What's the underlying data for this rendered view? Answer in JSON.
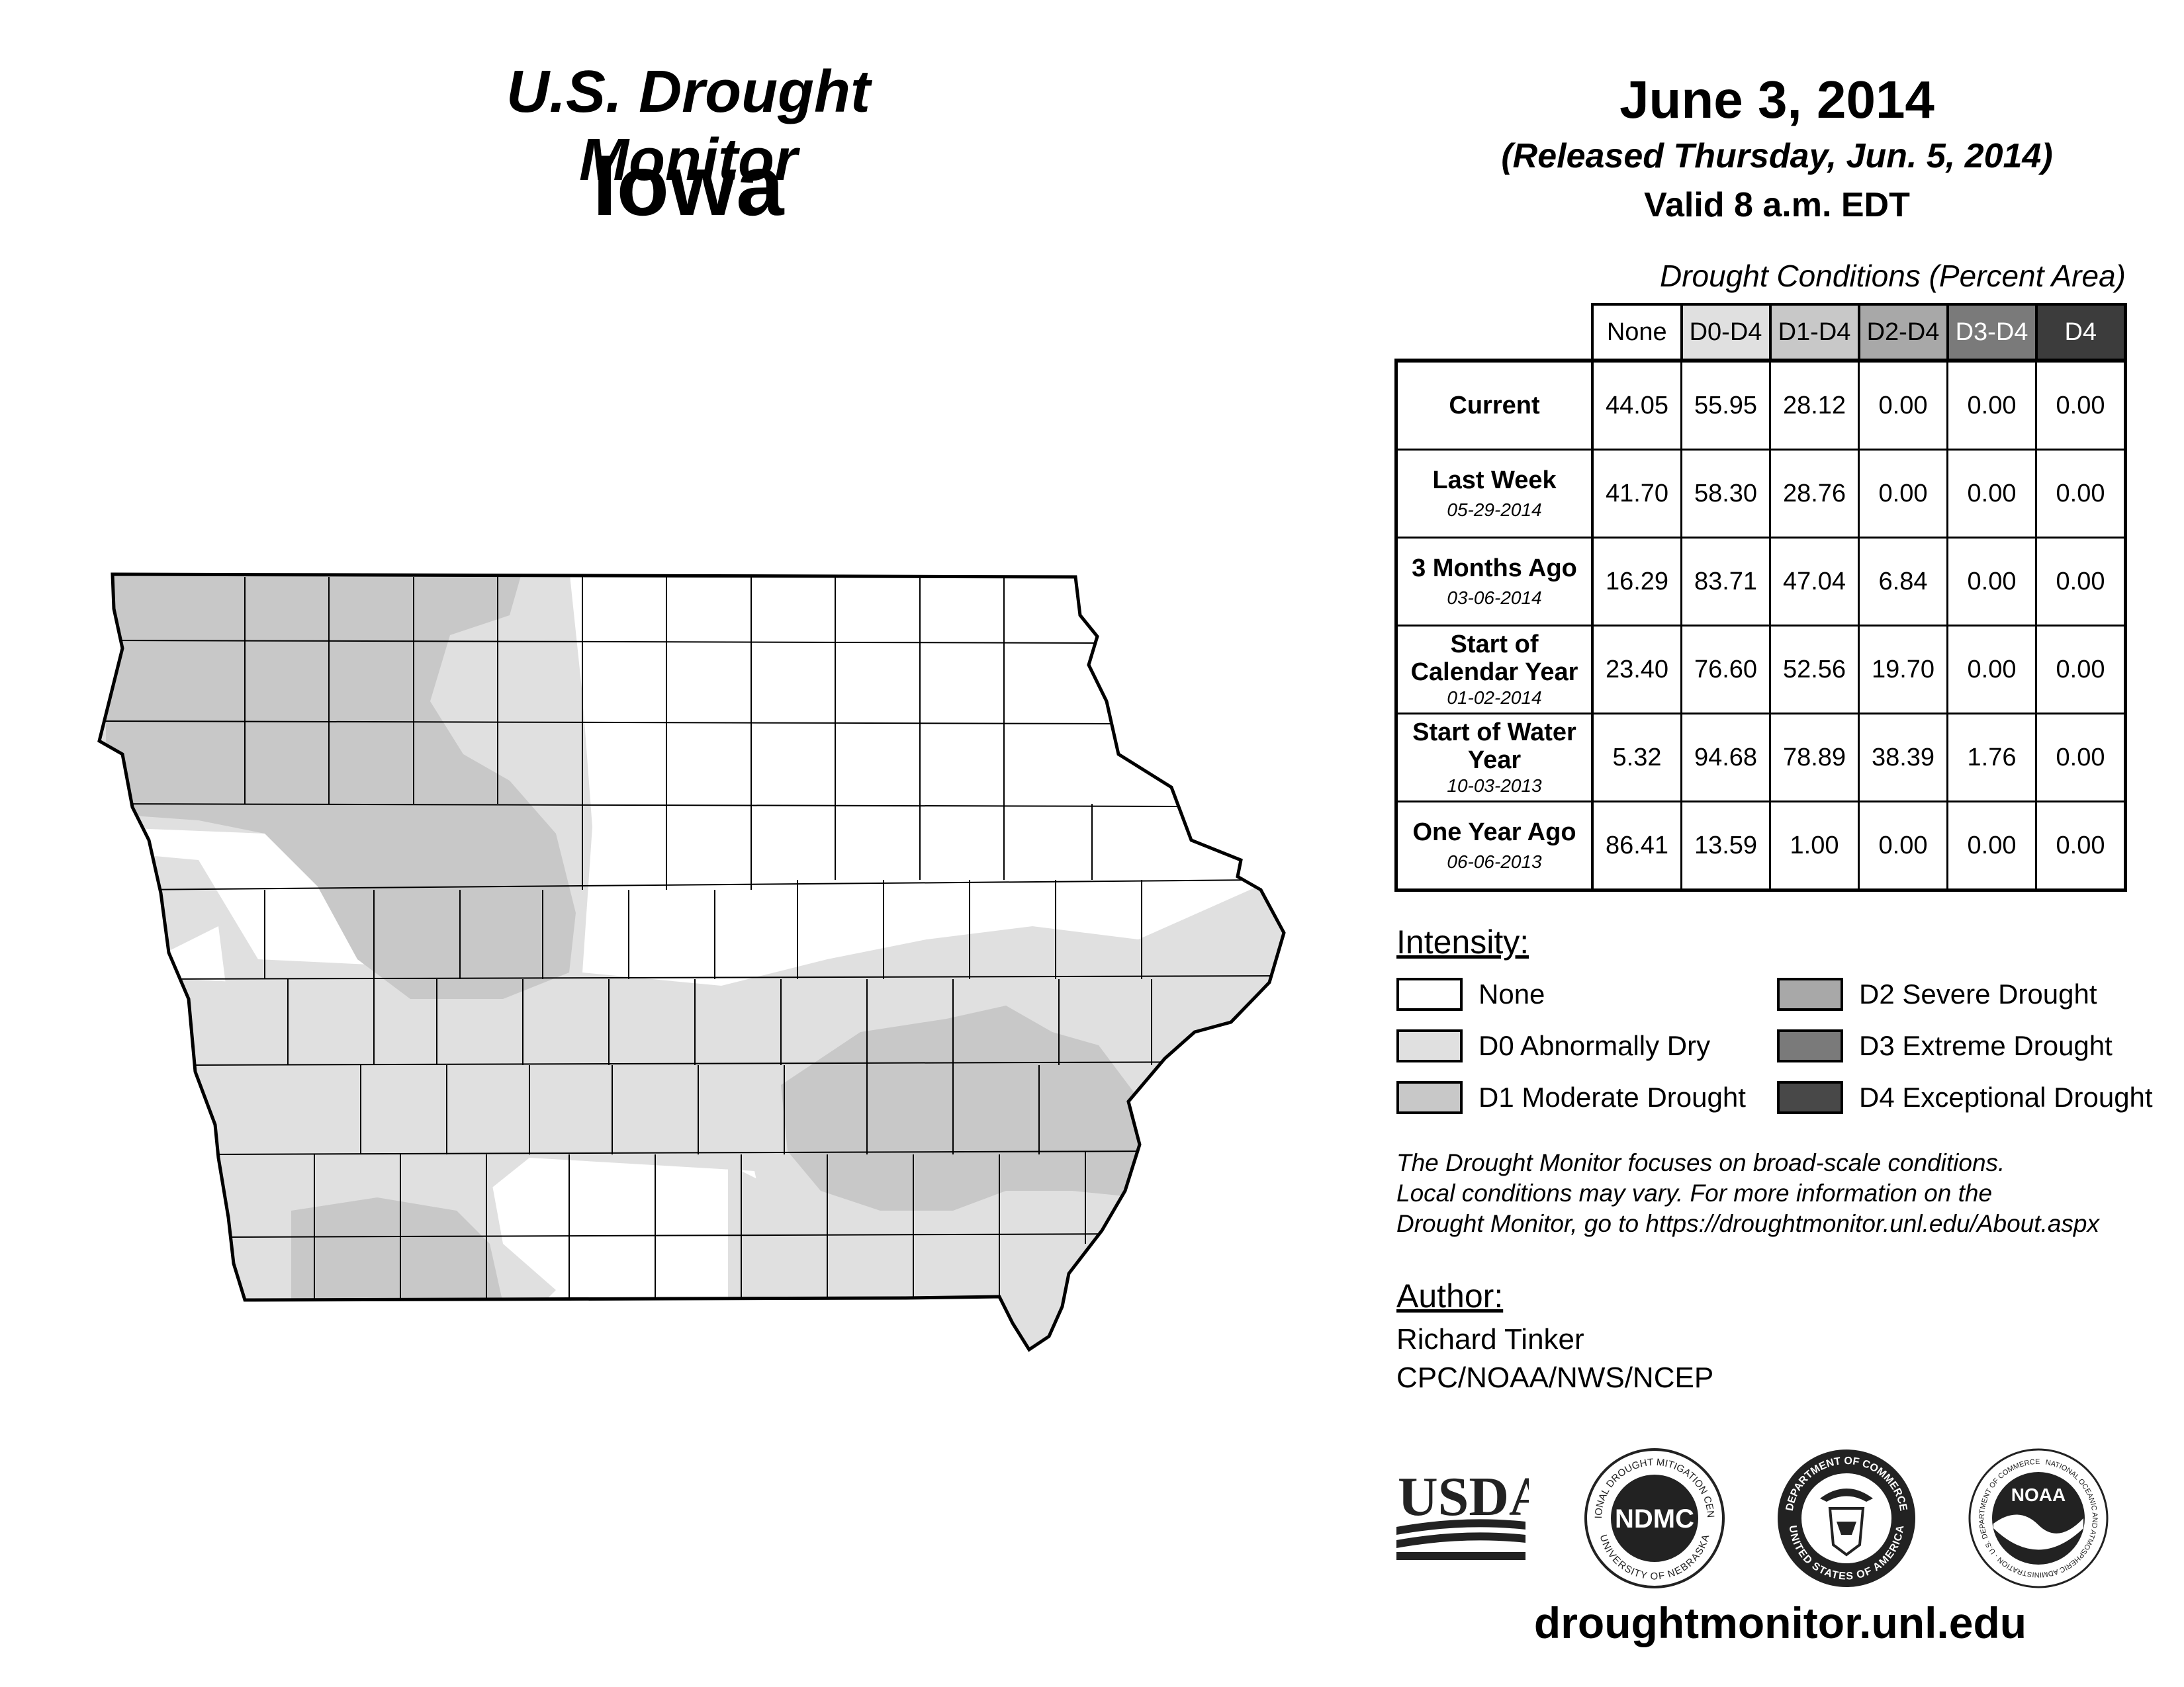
{
  "header": {
    "title": "U.S. Drought Monitor",
    "state": "Iowa",
    "date": "June 3, 2014",
    "released": "(Released Thursday, Jun. 5, 2014)",
    "valid": "Valid 8 a.m. EDT"
  },
  "table": {
    "caption": "Drought Conditions (Percent Area)",
    "columns": [
      "None",
      "D0-D4",
      "D1-D4",
      "D2-D4",
      "D3-D4",
      "D4"
    ],
    "column_colors": [
      "#ffffff",
      "#e0e0e0",
      "#c8c8c8",
      "#a8a8a8",
      "#7a7a7a",
      "#3c3c3c"
    ],
    "rows": [
      {
        "label": "Current",
        "date": "",
        "values": [
          "44.05",
          "55.95",
          "28.12",
          "0.00",
          "0.00",
          "0.00"
        ]
      },
      {
        "label": "Last Week",
        "date": "05-29-2014",
        "values": [
          "41.70",
          "58.30",
          "28.76",
          "0.00",
          "0.00",
          "0.00"
        ]
      },
      {
        "label": "3 Months Ago",
        "date": "03-06-2014",
        "values": [
          "16.29",
          "83.71",
          "47.04",
          "6.84",
          "0.00",
          "0.00"
        ]
      },
      {
        "label": "Start of Calendar Year",
        "date": "01-02-2014",
        "values": [
          "23.40",
          "76.60",
          "52.56",
          "19.70",
          "0.00",
          "0.00"
        ]
      },
      {
        "label": "Start of Water Year",
        "date": "10-03-2013",
        "values": [
          "5.32",
          "94.68",
          "78.89",
          "38.39",
          "1.76",
          "0.00"
        ]
      },
      {
        "label": "One Year Ago",
        "date": "06-06-2013",
        "values": [
          "86.41",
          "13.59",
          "1.00",
          "0.00",
          "0.00",
          "0.00"
        ]
      }
    ]
  },
  "legend": {
    "title": "Intensity:",
    "items": [
      {
        "label": "None",
        "color": "#ffffff"
      },
      {
        "label": "D0 Abnormally Dry",
        "color": "#e0e0e0"
      },
      {
        "label": "D1 Moderate Drought",
        "color": "#c8c8c8"
      },
      {
        "label": "D2 Severe Drought",
        "color": "#a8a8a8"
      },
      {
        "label": "D3 Extreme Drought",
        "color": "#7a7a7a"
      },
      {
        "label": "D4 Exceptional Drought",
        "color": "#484848"
      }
    ]
  },
  "disclaimer": [
    "The Drought Monitor focuses on broad-scale conditions.",
    "Local conditions may vary. For more information on the",
    "Drought Monitor, go to https://droughtmonitor.unl.edu/About.aspx"
  ],
  "author": {
    "title": "Author:",
    "name": "Richard Tinker",
    "org": "CPC/NOAA/NWS/NCEP"
  },
  "logos": {
    "usda": "USDA",
    "ndmc": "NDMC",
    "ndmc_top": "NATIONAL DROUGHT MITIGATION CENTER",
    "ndmc_bottom": "UNIVERSITY OF NEBRASKA",
    "doc_top": "DEPARTMENT OF COMMERCE",
    "doc_bottom": "UNITED STATES OF AMERICA",
    "noaa": "NOAA",
    "noaa_ring": "NATIONAL OCEANIC AND ATMOSPHERIC ADMINISTRATION · U.S. DEPARTMENT OF COMMERCE"
  },
  "website": "droughtmonitor.unl.edu",
  "map": {
    "region": "Iowa",
    "colors": {
      "none": "#ffffff",
      "d0": "#e0e0e0",
      "d1": "#c8c8c8"
    }
  }
}
